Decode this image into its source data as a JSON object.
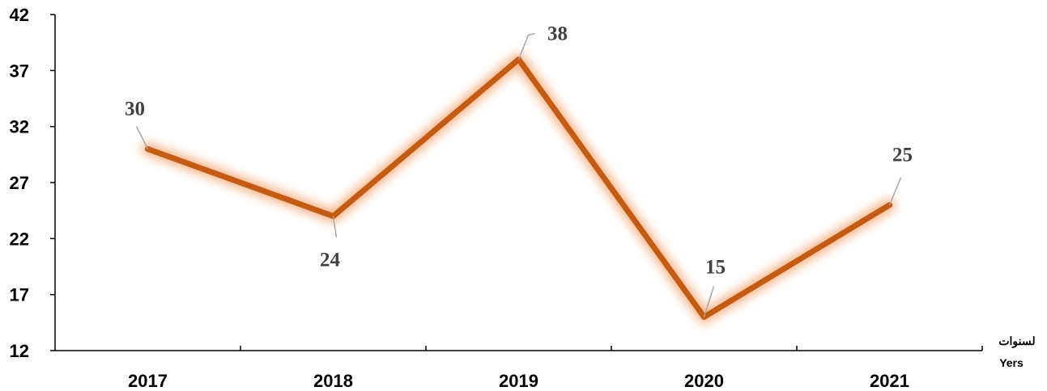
{
  "chart_data": {
    "type": "line",
    "categories": [
      "2017",
      "2018",
      "2019",
      "2020",
      "2021"
    ],
    "series": [
      {
        "values": [
          30,
          24,
          38,
          15,
          25
        ]
      }
    ],
    "data_labels": [
      "30",
      "24",
      "38",
      "15",
      "25"
    ],
    "y_ticks": [
      "12",
      "17",
      "22",
      "27",
      "32",
      "37",
      "42"
    ],
    "ylim": [
      12,
      42
    ],
    "xlabel": "لسنوات",
    "xlabel_en": "Yers",
    "title": "",
    "ylabel": "",
    "grid": false,
    "legend": "none",
    "colors": {
      "line": "#C55A11",
      "glow": "#F4B183",
      "axis": "#000000",
      "leader": "#A6A6A6",
      "label": "#404040"
    }
  }
}
